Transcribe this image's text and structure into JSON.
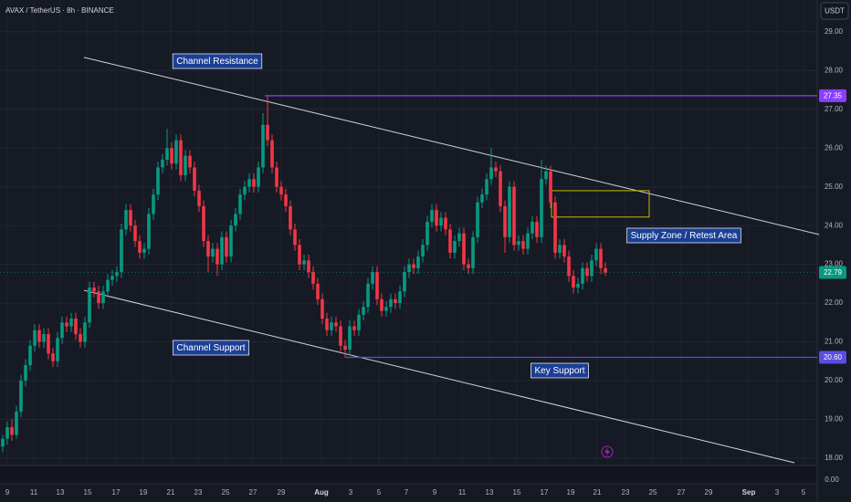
{
  "header": {
    "symbol": "AVAX / TetherUS · 8h · BINANCE",
    "currency_button": "USDT"
  },
  "chart_data": {
    "type": "candlestick",
    "up_color": "#089981",
    "down_color": "#f23645",
    "ylim": [
      17.81,
      29.82
    ],
    "yticks": [
      {
        "value": 29,
        "label": "29.00"
      },
      {
        "value": 28,
        "label": "28.00"
      },
      {
        "value": 27,
        "label": "27.00"
      },
      {
        "value": 26,
        "label": "26.00"
      },
      {
        "value": 25,
        "label": "25.00"
      },
      {
        "value": 24,
        "label": "24.00"
      },
      {
        "value": 23,
        "label": "23.00"
      },
      {
        "value": 22,
        "label": "22.00"
      },
      {
        "value": 21,
        "label": "21.00"
      },
      {
        "value": 20,
        "label": "20.00"
      },
      {
        "value": 19,
        "label": "19.00"
      },
      {
        "value": 18,
        "label": "18.00"
      }
    ],
    "lower_pane_yticks": [
      {
        "value": 0,
        "label": "0.00"
      }
    ],
    "grid": true,
    "xtick_labels": [
      9,
      11,
      13,
      15,
      17,
      19,
      21,
      23,
      25,
      27,
      29,
      "Aug",
      3,
      5,
      7,
      9,
      11,
      13,
      15,
      17,
      19,
      21,
      23,
      25,
      27,
      29,
      "Sep",
      3,
      5
    ],
    "candles": [
      [
        18.3,
        18.6,
        18.15,
        18.5
      ],
      [
        18.5,
        18.95,
        18.35,
        18.8
      ],
      [
        18.8,
        19.0,
        18.45,
        18.6
      ],
      [
        18.6,
        19.35,
        18.5,
        19.2
      ],
      [
        19.2,
        20.15,
        19.05,
        20.0
      ],
      [
        20.0,
        20.55,
        19.85,
        20.4
      ],
      [
        20.4,
        21.05,
        20.25,
        20.9
      ],
      [
        20.9,
        21.45,
        20.75,
        21.3
      ],
      [
        21.3,
        21.45,
        20.85,
        21.0
      ],
      [
        21.0,
        21.35,
        20.85,
        21.2
      ],
      [
        21.2,
        21.35,
        20.55,
        20.7
      ],
      [
        20.7,
        20.85,
        20.35,
        20.5
      ],
      [
        20.5,
        21.25,
        20.35,
        21.1
      ],
      [
        21.1,
        21.65,
        20.95,
        21.5
      ],
      [
        21.5,
        21.65,
        21.25,
        21.4
      ],
      [
        21.4,
        21.75,
        21.25,
        21.6
      ],
      [
        21.6,
        21.75,
        21.05,
        21.2
      ],
      [
        21.2,
        21.35,
        20.85,
        21.0
      ],
      [
        21.0,
        21.65,
        20.85,
        21.5
      ],
      [
        21.5,
        22.55,
        21.35,
        22.4
      ],
      [
        22.4,
        22.55,
        22.15,
        22.3
      ],
      [
        22.3,
        22.45,
        21.85,
        22.0
      ],
      [
        22.0,
        22.45,
        21.85,
        22.3
      ],
      [
        22.3,
        22.75,
        22.15,
        22.6
      ],
      [
        22.6,
        22.85,
        22.45,
        22.7
      ],
      [
        22.7,
        22.95,
        22.55,
        22.8
      ],
      [
        22.8,
        24.05,
        22.65,
        23.9
      ],
      [
        23.9,
        24.55,
        23.75,
        24.4
      ],
      [
        24.4,
        24.55,
        23.85,
        24.0
      ],
      [
        24.0,
        24.15,
        23.45,
        23.6
      ],
      [
        23.6,
        23.75,
        23.15,
        23.3
      ],
      [
        23.3,
        23.55,
        23.15,
        23.4
      ],
      [
        23.4,
        24.45,
        23.25,
        24.3
      ],
      [
        24.3,
        24.95,
        24.15,
        24.8
      ],
      [
        24.8,
        25.65,
        24.65,
        25.5
      ],
      [
        25.5,
        25.85,
        25.35,
        25.7
      ],
      [
        25.7,
        26.5,
        25.55,
        26.0
      ],
      [
        26.0,
        26.15,
        25.45,
        25.6
      ],
      [
        25.6,
        26.35,
        25.45,
        26.2
      ],
      [
        26.2,
        26.35,
        25.15,
        25.3
      ],
      [
        25.3,
        25.95,
        25.15,
        25.8
      ],
      [
        25.8,
        25.95,
        25.35,
        25.5
      ],
      [
        25.5,
        25.65,
        24.75,
        24.9
      ],
      [
        24.9,
        25.05,
        24.35,
        24.5
      ],
      [
        24.5,
        24.65,
        23.45,
        23.6
      ],
      [
        23.6,
        23.75,
        22.8,
        23.2
      ],
      [
        23.2,
        23.55,
        23.05,
        23.4
      ],
      [
        23.4,
        23.55,
        22.7,
        23.0
      ],
      [
        23.0,
        23.85,
        22.85,
        23.7
      ],
      [
        23.7,
        23.85,
        23.05,
        23.2
      ],
      [
        23.2,
        24.15,
        23.05,
        24.0
      ],
      [
        24.0,
        24.45,
        23.85,
        24.3
      ],
      [
        24.3,
        24.95,
        24.15,
        24.8
      ],
      [
        24.8,
        25.15,
        24.65,
        25.0
      ],
      [
        25.0,
        25.35,
        24.85,
        25.2
      ],
      [
        25.2,
        25.35,
        24.85,
        25.0
      ],
      [
        25.0,
        25.65,
        24.85,
        25.5
      ],
      [
        25.5,
        26.9,
        25.35,
        26.6
      ],
      [
        26.6,
        27.35,
        26.05,
        26.2
      ],
      [
        26.2,
        26.35,
        25.35,
        25.5
      ],
      [
        25.5,
        25.65,
        24.85,
        25.0
      ],
      [
        25.0,
        25.15,
        24.65,
        24.8
      ],
      [
        24.8,
        24.95,
        24.35,
        24.5
      ],
      [
        24.5,
        24.65,
        23.75,
        23.9
      ],
      [
        23.9,
        24.05,
        23.35,
        23.5
      ],
      [
        23.5,
        23.65,
        22.85,
        23.0
      ],
      [
        23.0,
        23.25,
        22.85,
        23.1
      ],
      [
        23.1,
        23.25,
        22.65,
        22.8
      ],
      [
        22.8,
        22.95,
        22.35,
        22.5
      ],
      [
        22.5,
        22.65,
        21.95,
        22.1
      ],
      [
        22.1,
        22.25,
        21.45,
        21.6
      ],
      [
        21.6,
        21.75,
        21.15,
        21.3
      ],
      [
        21.3,
        21.65,
        21.15,
        21.5
      ],
      [
        21.5,
        21.65,
        21.25,
        21.4
      ],
      [
        21.4,
        21.55,
        20.75,
        20.9
      ],
      [
        20.9,
        21.05,
        20.6,
        20.8
      ],
      [
        20.8,
        21.55,
        20.65,
        21.4
      ],
      [
        21.4,
        21.55,
        21.15,
        21.3
      ],
      [
        21.3,
        21.85,
        21.15,
        21.7
      ],
      [
        21.7,
        22.05,
        21.55,
        21.9
      ],
      [
        21.9,
        22.65,
        21.75,
        22.5
      ],
      [
        22.5,
        22.95,
        22.35,
        22.8
      ],
      [
        22.8,
        22.95,
        21.95,
        22.1
      ],
      [
        22.1,
        22.25,
        21.65,
        21.8
      ],
      [
        21.8,
        22.05,
        21.65,
        21.9
      ],
      [
        21.9,
        22.25,
        21.75,
        22.1
      ],
      [
        22.1,
        22.25,
        21.85,
        22.0
      ],
      [
        22.0,
        22.45,
        21.85,
        22.3
      ],
      [
        22.3,
        22.95,
        22.15,
        22.8
      ],
      [
        22.8,
        23.15,
        22.65,
        23.0
      ],
      [
        23.0,
        23.15,
        22.75,
        22.9
      ],
      [
        22.9,
        23.35,
        22.75,
        23.2
      ],
      [
        23.2,
        23.65,
        23.05,
        23.5
      ],
      [
        23.5,
        24.25,
        23.35,
        24.1
      ],
      [
        24.1,
        24.55,
        23.95,
        24.4
      ],
      [
        24.4,
        24.55,
        23.85,
        24.0
      ],
      [
        24.0,
        24.35,
        23.85,
        24.2
      ],
      [
        24.2,
        24.35,
        23.75,
        23.9
      ],
      [
        23.9,
        24.05,
        23.15,
        23.3
      ],
      [
        23.3,
        23.75,
        23.15,
        23.6
      ],
      [
        23.6,
        23.95,
        23.45,
        23.8
      ],
      [
        23.8,
        23.95,
        22.85,
        23.0
      ],
      [
        23.0,
        23.15,
        22.75,
        22.9
      ],
      [
        22.9,
        23.85,
        22.75,
        23.7
      ],
      [
        23.7,
        24.75,
        23.55,
        24.6
      ],
      [
        24.6,
        24.95,
        24.45,
        24.8
      ],
      [
        24.8,
        25.35,
        24.65,
        25.2
      ],
      [
        25.2,
        26.0,
        25.05,
        25.5
      ],
      [
        25.5,
        25.65,
        25.25,
        25.4
      ],
      [
        25.4,
        25.55,
        24.35,
        24.5
      ],
      [
        24.5,
        24.65,
        23.3,
        23.7
      ],
      [
        23.7,
        25.15,
        23.55,
        25.0
      ],
      [
        25.0,
        25.15,
        23.35,
        23.5
      ],
      [
        23.5,
        23.75,
        23.35,
        23.6
      ],
      [
        23.6,
        23.75,
        23.25,
        23.4
      ],
      [
        23.4,
        23.95,
        23.25,
        23.8
      ],
      [
        23.8,
        24.25,
        23.65,
        24.1
      ],
      [
        24.1,
        24.25,
        23.55,
        23.7
      ],
      [
        23.7,
        25.7,
        23.55,
        25.2
      ],
      [
        25.2,
        25.55,
        25.05,
        25.4
      ],
      [
        25.4,
        25.55,
        24.45,
        24.6
      ],
      [
        24.6,
        24.75,
        23.15,
        23.3
      ],
      [
        23.3,
        23.65,
        23.15,
        23.5
      ],
      [
        23.5,
        23.65,
        23.05,
        23.2
      ],
      [
        23.2,
        23.35,
        22.55,
        22.7
      ],
      [
        22.7,
        22.85,
        22.25,
        22.4
      ],
      [
        22.4,
        22.65,
        22.25,
        22.5
      ],
      [
        22.5,
        23.05,
        22.35,
        22.9
      ],
      [
        22.9,
        23.05,
        22.55,
        22.7
      ],
      [
        22.7,
        23.25,
        22.55,
        23.1
      ],
      [
        23.1,
        23.55,
        22.95,
        23.4
      ],
      [
        23.4,
        23.55,
        22.75,
        22.9
      ],
      [
        22.9,
        23.05,
        22.7,
        22.79
      ]
    ],
    "levels": [
      {
        "price": 27.35,
        "color": "#8a3ffc"
      },
      {
        "price": {
          "value": 20.6,
          "label": "20.60"
        },
        "color": "#5b4de0"
      }
    ],
    "last_price": 22.79,
    "last_color": "#089981",
    "trendlines": [
      {
        "start": 28.34,
        "end": 23.77
      },
      {
        "start": 22.33,
        "end": 17.88
      }
    ],
    "trendline_color": "#d1d4dc",
    "zone": {
      "top": 24.9,
      "bottom": 24.22,
      "color": "#c9b800"
    },
    "annotations": [
      "Channel Resistance",
      "Supply Zone / Retest Area",
      "Channel Support",
      "Key Support"
    ]
  }
}
